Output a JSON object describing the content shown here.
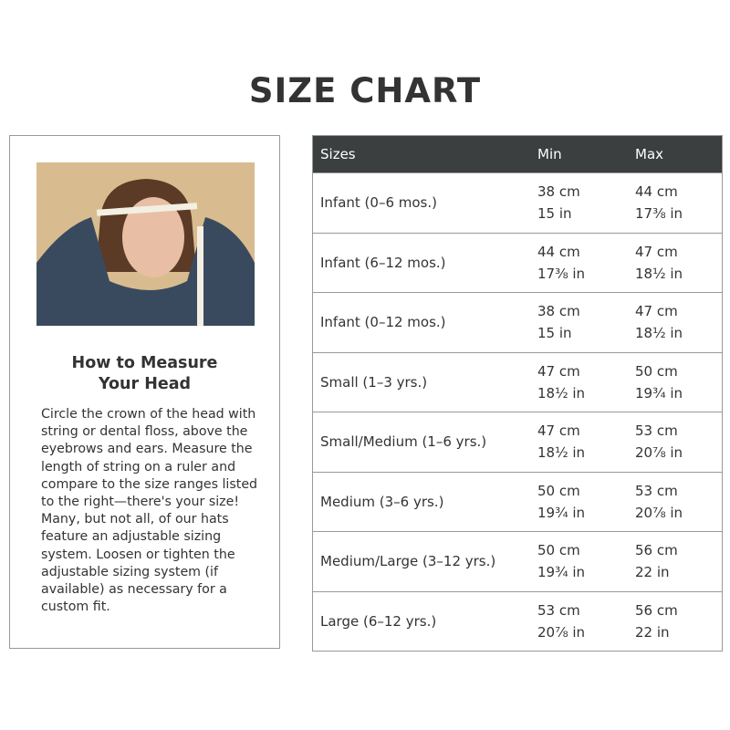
{
  "title": "SIZE CHART",
  "guide": {
    "photo_alt": "woman measuring head with tape measure",
    "heading_line1": "How to Measure",
    "heading_line2": "Your Head",
    "body": "Circle the crown of the head with string or dental floss, above the eyebrows and ears. Measure the length of string on a ruler and compare to the size ranges listed to the right—there's your size! Many, but not all, of our hats feature an adjustable sizing system. Loosen or tighten the adjustable sizing system (if available) as necessary for a custom fit."
  },
  "table": {
    "headers": [
      "Sizes",
      "Min",
      "Max"
    ],
    "rows": [
      {
        "size": "Infant (0–6 mos.)",
        "min_cm": "38 cm",
        "min_in": "15 in",
        "max_cm": "44 cm",
        "max_in": "17⅜ in"
      },
      {
        "size": "Infant (6–12 mos.)",
        "min_cm": "44 cm",
        "min_in": "17⅜ in",
        "max_cm": "47 cm",
        "max_in": "18½ in"
      },
      {
        "size": "Infant (0–12 mos.)",
        "min_cm": "38 cm",
        "min_in": "15 in",
        "max_cm": "47 cm",
        "max_in": "18½ in"
      },
      {
        "size": "Small (1–3 yrs.)",
        "min_cm": "47 cm",
        "min_in": "18½ in",
        "max_cm": "50 cm",
        "max_in": "19¾ in"
      },
      {
        "size": "Small/Medium (1–6 yrs.)",
        "min_cm": "47 cm",
        "min_in": "18½ in",
        "max_cm": "53 cm",
        "max_in": "20⅞ in"
      },
      {
        "size": "Medium (3–6 yrs.)",
        "min_cm": "50 cm",
        "min_in": "19¾ in",
        "max_cm": "53 cm",
        "max_in": "20⅞ in"
      },
      {
        "size": "Medium/Large (3–12 yrs.)",
        "min_cm": "50 cm",
        "min_in": "19¾ in",
        "max_cm": "56 cm",
        "max_in": "22 in"
      },
      {
        "size": "Large (6–12 yrs.)",
        "min_cm": "53 cm",
        "min_in": "20⅞ in",
        "max_cm": "56 cm",
        "max_in": "22 in"
      }
    ]
  },
  "colors": {
    "header_bg": "#3b3f3f",
    "text": "#333333",
    "border": "#999999"
  }
}
